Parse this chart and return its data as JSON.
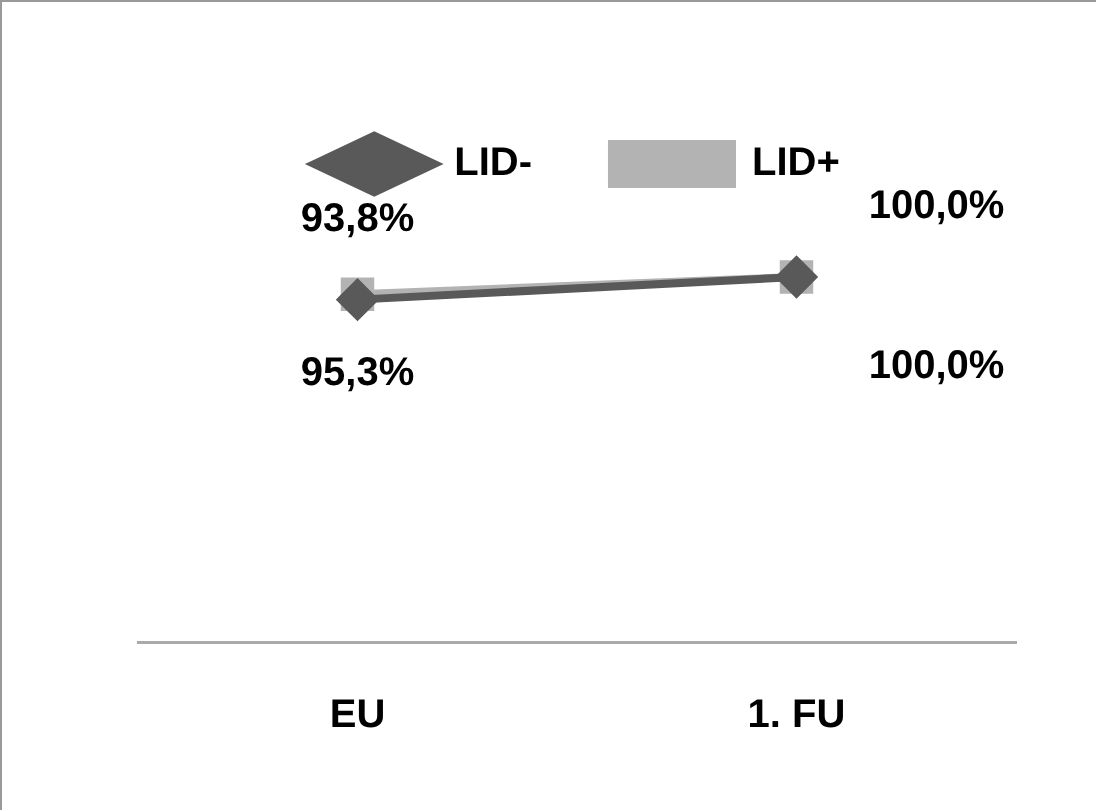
{
  "chart_data": {
    "type": "line",
    "categories": [
      "EU",
      "1. FU"
    ],
    "series": [
      {
        "name": "LID-",
        "color": "#595959",
        "marker": "diamond",
        "values": [
          93.8,
          100
        ],
        "value_labels": [
          "93,8%",
          "100,0%"
        ]
      },
      {
        "name": "LID+",
        "color": "#b3b3b3",
        "marker": "square",
        "values": [
          95.3,
          100
        ],
        "value_labels": [
          "95,3%",
          "100,0%"
        ]
      }
    ],
    "legend": "top",
    "grid": false
  }
}
